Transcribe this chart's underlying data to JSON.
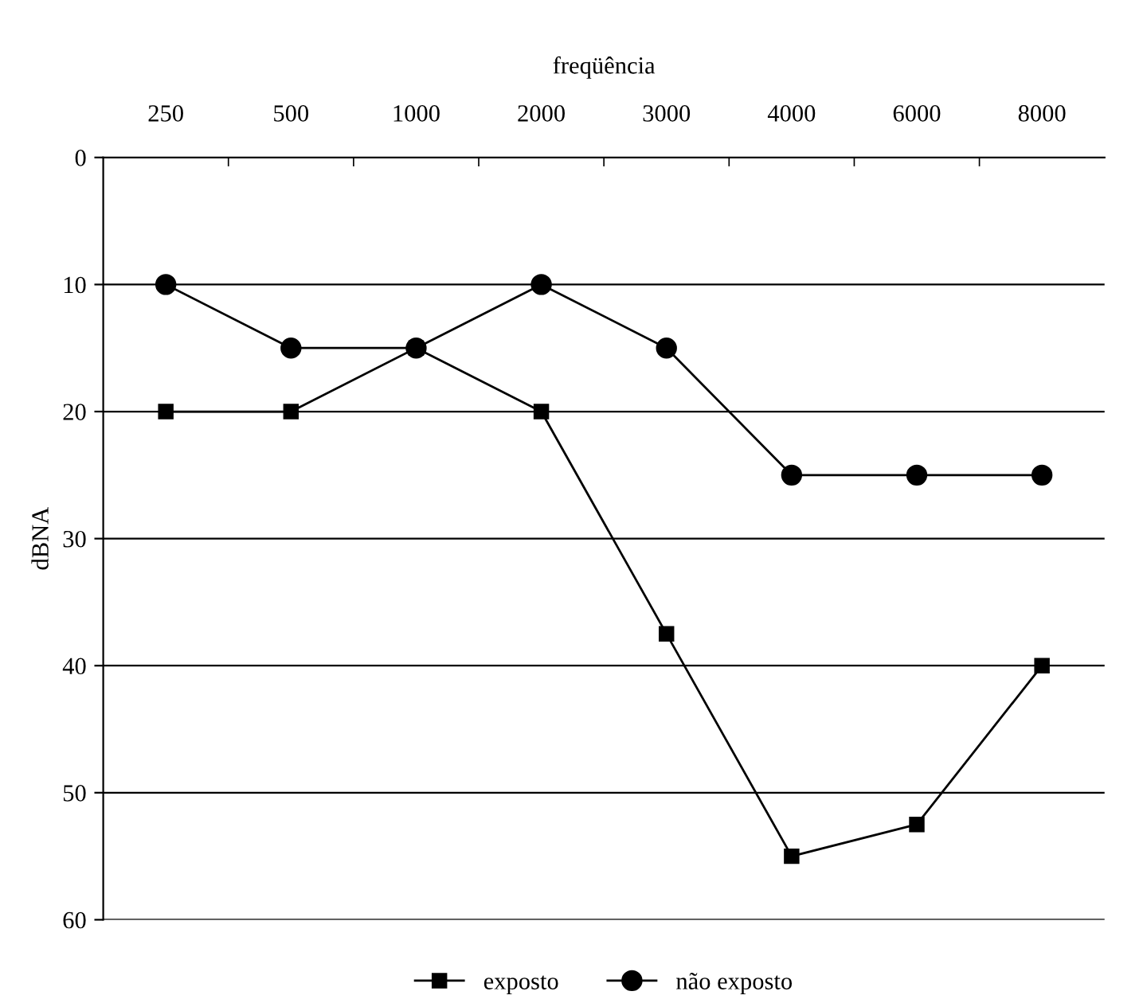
{
  "chart_data": {
    "type": "line",
    "xlabel": "freqüência",
    "ylabel": "dBNA",
    "categories": [
      "250",
      "500",
      "1000",
      "2000",
      "3000",
      "4000",
      "6000",
      "8000"
    ],
    "series": [
      {
        "name": "exposto",
        "color": "#000000",
        "marker": "square",
        "values": [
          20,
          20,
          15,
          20,
          37.5,
          55,
          52.5,
          40
        ]
      },
      {
        "name": "não exposto",
        "color": "#000000",
        "marker": "circle",
        "values": [
          10,
          15,
          15,
          10,
          15,
          25,
          25,
          25
        ]
      }
    ],
    "ylim": [
      60,
      0
    ],
    "yticks": [
      0,
      10,
      20,
      30,
      40,
      50,
      60
    ],
    "grid": "y",
    "legend": "bottom",
    "line_style": "solid"
  }
}
